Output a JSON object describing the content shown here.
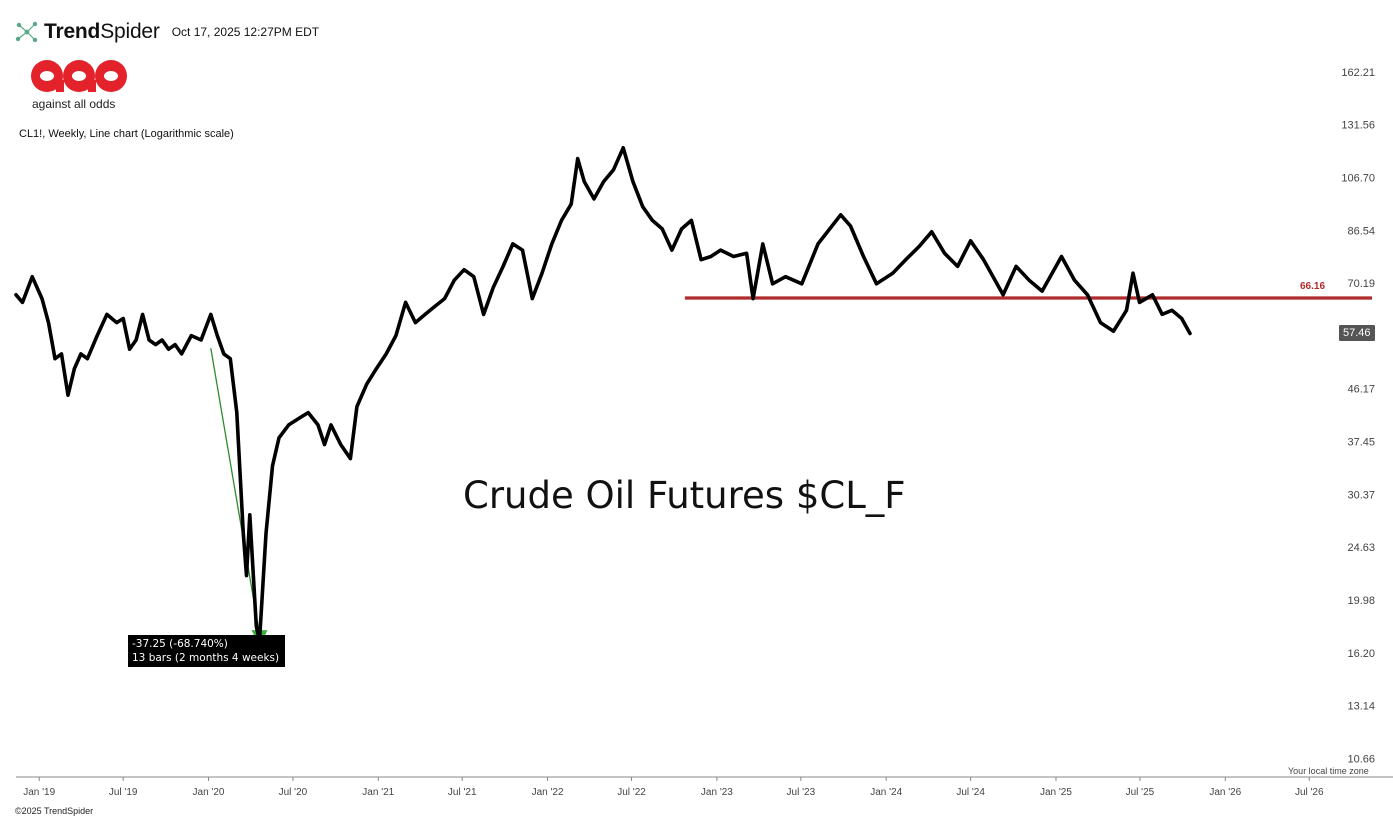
{
  "header": {
    "brand_bold": "Trend",
    "brand_light": "Spider",
    "timestamp": "Oct 17, 2025 12:27PM EDT"
  },
  "logo": {
    "letters": "aao",
    "tagline": "against all odds",
    "color": "#e3222b"
  },
  "chart_description": "CL1!, Weekly, Line chart (Logarithmic scale)",
  "overlay_title": "Crude Oil Futures $CL_F",
  "tooltip": {
    "line1": "-37.25 (-68.740%)",
    "line2": "13 bars (2 months 4 weeks)"
  },
  "footer": {
    "timezone": "Your local time zone",
    "copyright": "©2025 TrendSpider"
  },
  "chart_data": {
    "type": "line",
    "symbol": "CL1!",
    "interval": "Weekly",
    "y_scale": "log",
    "ylim": [
      9.9,
      170
    ],
    "xlim": [
      "2018-11-12",
      "2026-09-01"
    ],
    "y_ticks": [
      "162.21",
      "131.56",
      "106.70",
      "86.54",
      "70.19",
      "57.46",
      "46.17",
      "37.45",
      "30.37",
      "24.63",
      "19.98",
      "16.20",
      "13.14",
      "10.66"
    ],
    "x_ticks": [
      {
        "label": "Jan '19",
        "date": "2019-01-01"
      },
      {
        "label": "Jul '19",
        "date": "2019-07-01"
      },
      {
        "label": "Jan '20",
        "date": "2020-01-01"
      },
      {
        "label": "Jul '20",
        "date": "2020-07-01"
      },
      {
        "label": "Jan '21",
        "date": "2021-01-01"
      },
      {
        "label": "Jul '21",
        "date": "2021-07-01"
      },
      {
        "label": "Jan '22",
        "date": "2022-01-01"
      },
      {
        "label": "Jul '22",
        "date": "2022-07-01"
      },
      {
        "label": "Jan '23",
        "date": "2023-01-01"
      },
      {
        "label": "Jul '23",
        "date": "2023-07-01"
      },
      {
        "label": "Jan '24",
        "date": "2024-01-01"
      },
      {
        "label": "Jul '24",
        "date": "2024-07-01"
      },
      {
        "label": "Jan '25",
        "date": "2025-01-01"
      },
      {
        "label": "Jul '25",
        "date": "2025-07-01"
      },
      {
        "label": "Jan '26",
        "date": "2026-01-01"
      },
      {
        "label": "Jul '26",
        "date": "2026-07-01"
      }
    ],
    "series": [
      {
        "line_color": "#000000",
        "points": [
          [
            "2018-11-12",
            67
          ],
          [
            "2018-11-26",
            65
          ],
          [
            "2018-12-17",
            72
          ],
          [
            "2019-01-07",
            66
          ],
          [
            "2019-01-21",
            60
          ],
          [
            "2019-02-04",
            52
          ],
          [
            "2019-02-18",
            53
          ],
          [
            "2019-03-04",
            45
          ],
          [
            "2019-03-18",
            50
          ],
          [
            "2019-04-01",
            53
          ],
          [
            "2019-04-15",
            52
          ],
          [
            "2019-05-06",
            57
          ],
          [
            "2019-05-27",
            62
          ],
          [
            "2019-06-17",
            60
          ],
          [
            "2019-07-01",
            61
          ],
          [
            "2019-07-15",
            54
          ],
          [
            "2019-07-29",
            56
          ],
          [
            "2019-08-12",
            62
          ],
          [
            "2019-08-26",
            56
          ],
          [
            "2019-09-09",
            55
          ],
          [
            "2019-09-23",
            56
          ],
          [
            "2019-10-07",
            54
          ],
          [
            "2019-10-21",
            55
          ],
          [
            "2019-11-04",
            53
          ],
          [
            "2019-11-25",
            57
          ],
          [
            "2019-12-16",
            56
          ],
          [
            "2020-01-06",
            62
          ],
          [
            "2020-01-20",
            57
          ],
          [
            "2020-02-03",
            53
          ],
          [
            "2020-02-17",
            52
          ],
          [
            "2020-03-02",
            42
          ],
          [
            "2020-03-16",
            26
          ],
          [
            "2020-03-23",
            22
          ],
          [
            "2020-03-30",
            28
          ],
          [
            "2020-04-13",
            18
          ],
          [
            "2020-04-20",
            17
          ],
          [
            "2020-05-04",
            26
          ],
          [
            "2020-05-18",
            34
          ],
          [
            "2020-06-01",
            38
          ],
          [
            "2020-06-22",
            40
          ],
          [
            "2020-07-13",
            41
          ],
          [
            "2020-08-03",
            42
          ],
          [
            "2020-08-24",
            40
          ],
          [
            "2020-09-07",
            37
          ],
          [
            "2020-09-21",
            40
          ],
          [
            "2020-10-12",
            37
          ],
          [
            "2020-11-02",
            35
          ],
          [
            "2020-11-16",
            43
          ],
          [
            "2020-12-07",
            47
          ],
          [
            "2020-12-28",
            50
          ],
          [
            "2021-01-18",
            53
          ],
          [
            "2021-02-08",
            57
          ],
          [
            "2021-03-01",
            65
          ],
          [
            "2021-03-22",
            60
          ],
          [
            "2021-04-12",
            62
          ],
          [
            "2021-05-03",
            64
          ],
          [
            "2021-05-24",
            66
          ],
          [
            "2021-06-14",
            71
          ],
          [
            "2021-07-05",
            74
          ],
          [
            "2021-07-26",
            72
          ],
          [
            "2021-08-16",
            62
          ],
          [
            "2021-09-06",
            69
          ],
          [
            "2021-09-27",
            75
          ],
          [
            "2021-10-18",
            82
          ],
          [
            "2021-11-08",
            80
          ],
          [
            "2021-11-29",
            66
          ],
          [
            "2021-12-20",
            73
          ],
          [
            "2022-01-10",
            82
          ],
          [
            "2022-01-31",
            90
          ],
          [
            "2022-02-21",
            96
          ],
          [
            "2022-03-07",
            115
          ],
          [
            "2022-03-21",
            105
          ],
          [
            "2022-04-11",
            98
          ],
          [
            "2022-05-02",
            105
          ],
          [
            "2022-05-23",
            110
          ],
          [
            "2022-06-13",
            120
          ],
          [
            "2022-07-04",
            105
          ],
          [
            "2022-07-25",
            95
          ],
          [
            "2022-08-15",
            90
          ],
          [
            "2022-09-05",
            87
          ],
          [
            "2022-09-26",
            80
          ],
          [
            "2022-10-17",
            87
          ],
          [
            "2022-11-07",
            90
          ],
          [
            "2022-11-28",
            77
          ],
          [
            "2022-12-19",
            78
          ],
          [
            "2023-01-09",
            80
          ],
          [
            "2023-02-06",
            78
          ],
          [
            "2023-03-06",
            79
          ],
          [
            "2023-03-20",
            66
          ],
          [
            "2023-04-10",
            82
          ],
          [
            "2023-05-01",
            70
          ],
          [
            "2023-05-29",
            72
          ],
          [
            "2023-07-03",
            70
          ],
          [
            "2023-08-07",
            82
          ],
          [
            "2023-09-25",
            92
          ],
          [
            "2023-10-16",
            88
          ],
          [
            "2023-11-13",
            78
          ],
          [
            "2023-12-11",
            70
          ],
          [
            "2024-01-15",
            73
          ],
          [
            "2024-02-12",
            77
          ],
          [
            "2024-03-11",
            81
          ],
          [
            "2024-04-08",
            86
          ],
          [
            "2024-05-06",
            79
          ],
          [
            "2024-06-03",
            75
          ],
          [
            "2024-07-01",
            83
          ],
          [
            "2024-07-29",
            77
          ],
          [
            "2024-09-09",
            67
          ],
          [
            "2024-10-07",
            75
          ],
          [
            "2024-11-04",
            71
          ],
          [
            "2024-12-02",
            68
          ],
          [
            "2025-01-13",
            78
          ],
          [
            "2025-02-10",
            71
          ],
          [
            "2025-03-10",
            67
          ],
          [
            "2025-04-07",
            60
          ],
          [
            "2025-05-05",
            58
          ],
          [
            "2025-06-02",
            63
          ],
          [
            "2025-06-16",
            73
          ],
          [
            "2025-06-30",
            65
          ],
          [
            "2025-07-28",
            67
          ],
          [
            "2025-08-18",
            62
          ],
          [
            "2025-09-08",
            63
          ],
          [
            "2025-09-29",
            61
          ],
          [
            "2025-10-17",
            57.46
          ]
        ]
      }
    ],
    "last_price": "57.46",
    "last_price_tag_color": "#555555",
    "horizontal_level": {
      "value": 66.16,
      "label": "66.16",
      "color": "#b02b2b",
      "start": "2022-10-24"
    },
    "measure": {
      "from_date": "2020-01-06",
      "from_price": 54.2,
      "to_date": "2020-04-20",
      "to_price": 16.9,
      "color": "#2e8b2e"
    }
  }
}
